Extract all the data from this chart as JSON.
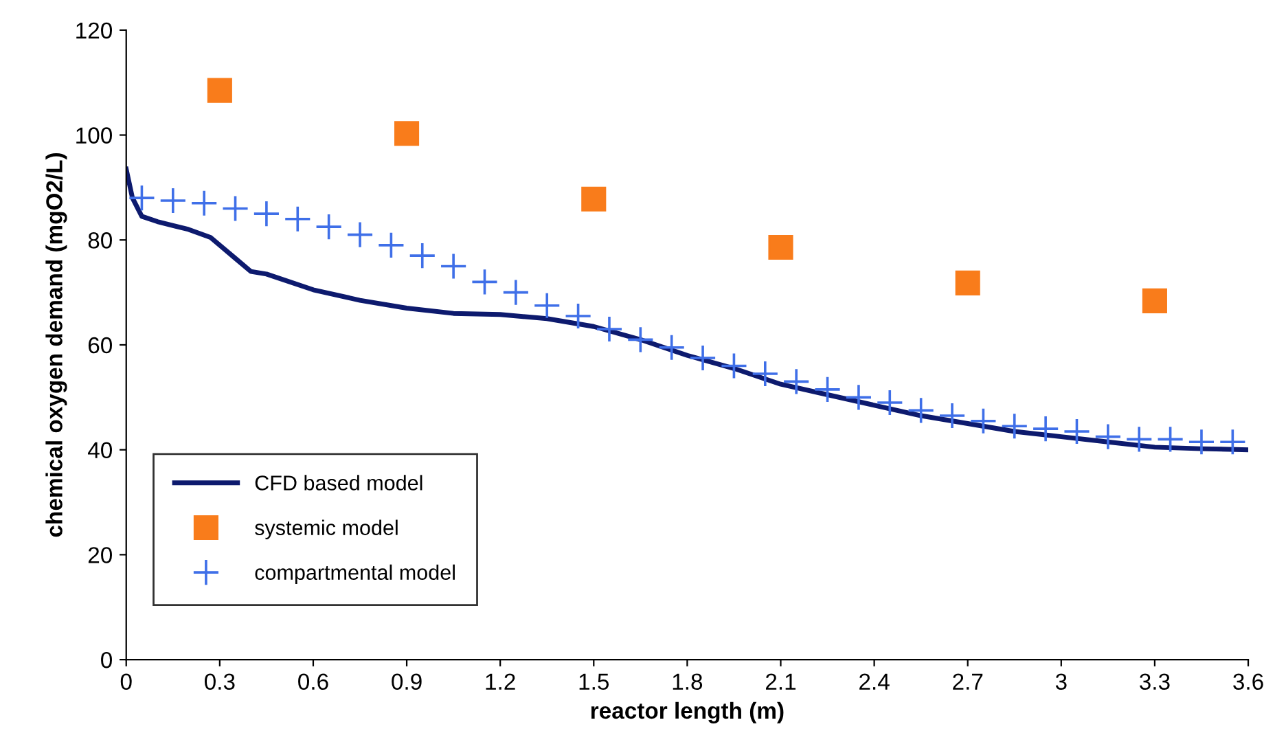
{
  "chart_data": {
    "type": "line",
    "xlabel": "reactor length (m)",
    "ylabel": "chemical oxygen demand (mgO2/L)",
    "xlim": [
      0,
      3.6
    ],
    "ylim": [
      0,
      120
    ],
    "xticks": [
      0,
      0.3,
      0.6,
      0.9,
      1.2,
      1.5,
      1.8,
      2.1,
      2.4,
      2.7,
      3,
      3.3,
      3.6
    ],
    "yticks": [
      0,
      20,
      40,
      60,
      80,
      100,
      120
    ],
    "grid": false,
    "legend": "bottom left",
    "series": [
      {
        "name": "CFD based model",
        "color": "#0d1a6e",
        "marker": "none",
        "line_style": "solid",
        "x": [
          0,
          0.02,
          0.05,
          0.1,
          0.2,
          0.27,
          0.3,
          0.35,
          0.4,
          0.45,
          0.6,
          0.75,
          0.9,
          1.05,
          1.2,
          1.35,
          1.5,
          1.65,
          1.8,
          1.95,
          2.1,
          2.25,
          2.4,
          2.55,
          2.7,
          2.85,
          3,
          3.15,
          3.3,
          3.45,
          3.6
        ],
        "values": [
          93.5,
          88,
          84.5,
          83.5,
          82,
          80.5,
          79,
          76.5,
          74,
          73.5,
          70.5,
          68.5,
          67,
          66,
          65.8,
          65,
          63.5,
          61,
          58,
          55.5,
          52.5,
          50.5,
          48.5,
          46.5,
          45,
          43.5,
          42.5,
          41.5,
          40.5,
          40.2,
          40
        ]
      },
      {
        "name": "systemic model",
        "type": "scatter",
        "color": "#f97c1b",
        "marker": "square",
        "x": [
          0.3,
          0.9,
          1.5,
          2.1,
          2.7,
          3.3
        ],
        "values": [
          108.5,
          100.3,
          87.8,
          78.6,
          71.8,
          68.4
        ]
      },
      {
        "name": "compartmental model",
        "type": "scatter",
        "color": "#3f6fe8",
        "marker": "cross",
        "x": [
          0.05,
          0.15,
          0.25,
          0.35,
          0.45,
          0.55,
          0.65,
          0.75,
          0.85,
          0.95,
          1.05,
          1.15,
          1.25,
          1.35,
          1.45,
          1.55,
          1.65,
          1.75,
          1.85,
          1.95,
          2.05,
          2.15,
          2.25,
          2.35,
          2.45,
          2.55,
          2.65,
          2.75,
          2.85,
          2.95,
          3.05,
          3.15,
          3.25,
          3.35,
          3.45,
          3.55
        ],
        "values": [
          88,
          87.5,
          87,
          86,
          85,
          84,
          82.5,
          81,
          79,
          77,
          75,
          72,
          70,
          67.5,
          65.5,
          63,
          61,
          59.5,
          57.5,
          56,
          54.5,
          53,
          51.5,
          50,
          49,
          47.5,
          46.5,
          45.5,
          44.5,
          44,
          43.5,
          42.5,
          42,
          42,
          41.5,
          41.5
        ]
      }
    ]
  }
}
